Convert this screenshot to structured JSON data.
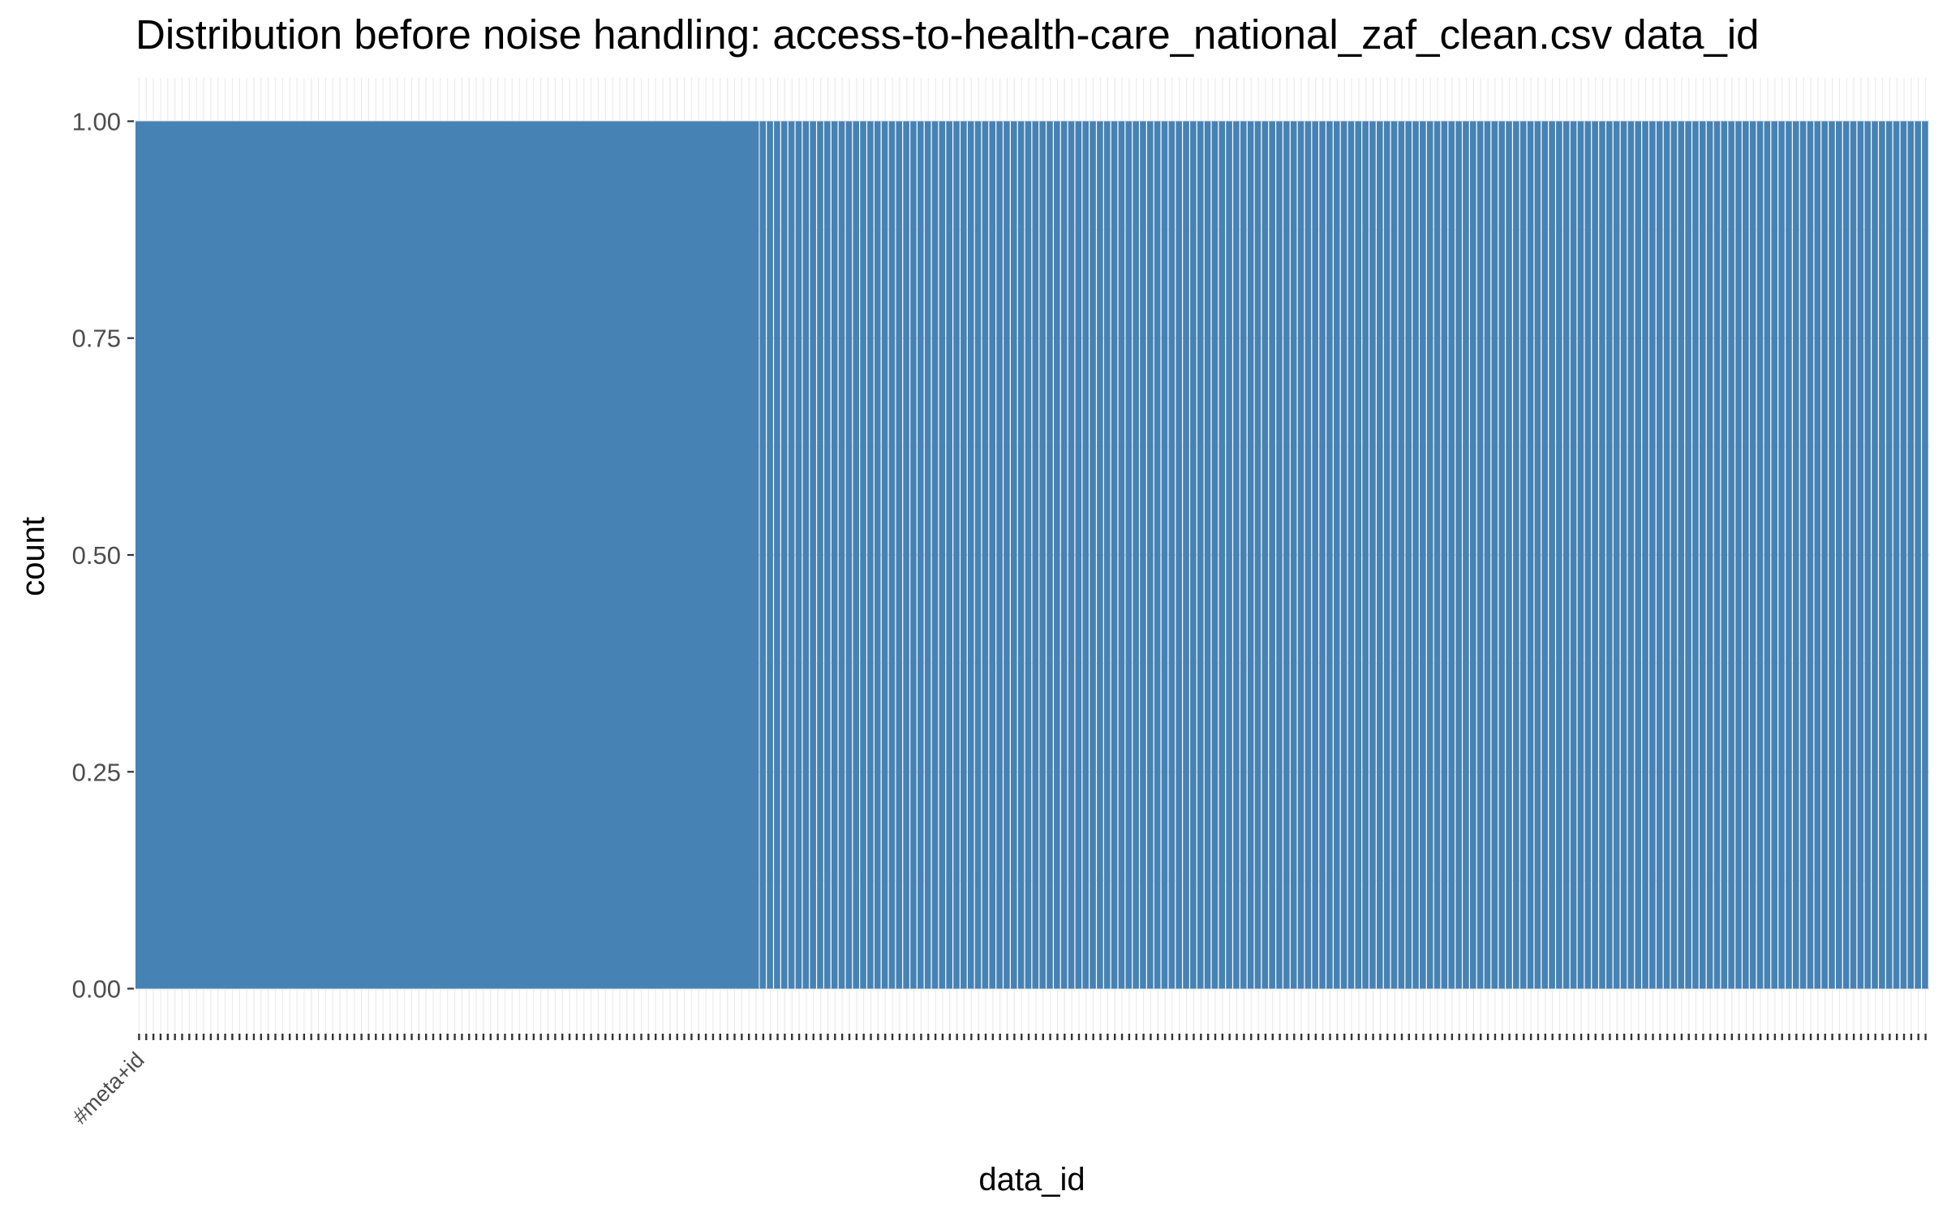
{
  "chart_data": {
    "type": "bar",
    "title": "Distribution before noise handling: access-to-health-care_national_zaf_clean.csv data_id",
    "xlabel": "data_id",
    "ylabel": "count",
    "ylim": [
      -0.05,
      1.05
    ],
    "y_ticks": [
      "0.00",
      "0.25",
      "0.50",
      "0.75",
      "1.00"
    ],
    "grid": true,
    "legend": "none",
    "bar_color": "#4682b4",
    "first_category_label": "#meta+id",
    "first_bar_value": 1,
    "category_labels_legible": false,
    "series": [
      {
        "category_count": 250,
        "value": 1
      }
    ],
    "note_on_categories": ""
  }
}
